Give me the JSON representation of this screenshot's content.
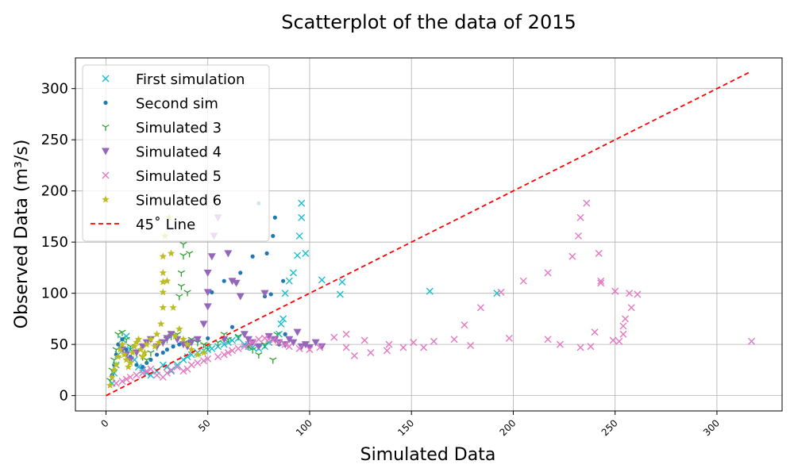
{
  "chart_data": {
    "type": "scatter",
    "title": "Scatterplot of the data of 2015",
    "xlabel": "Simulated Data",
    "ylabel": "Observed Data (m³/s)",
    "xlim": [
      -15,
      332
    ],
    "ylim": [
      -15,
      330
    ],
    "xticks": [
      0,
      50,
      100,
      150,
      200,
      250,
      300
    ],
    "xtick_labels": [
      "0",
      "50",
      "100",
      "150",
      "200",
      "250",
      "300"
    ],
    "yticks": [
      0,
      50,
      100,
      150,
      200,
      250,
      300
    ],
    "ytick_labels": [
      "0",
      "50",
      "100",
      "150",
      "200",
      "250",
      "300"
    ],
    "xtick_rotation": 45,
    "grid": true,
    "legend_position": "top-left",
    "series": [
      {
        "name": "First simulation",
        "marker": "x",
        "color": "#17becf",
        "points": [
          [
            3,
            12
          ],
          [
            4,
            22
          ],
          [
            5,
            30
          ],
          [
            6,
            40
          ],
          [
            7,
            48
          ],
          [
            8,
            55
          ],
          [
            10,
            58
          ],
          [
            12,
            45
          ],
          [
            14,
            35
          ],
          [
            16,
            28
          ],
          [
            18,
            25
          ],
          [
            20,
            22
          ],
          [
            22,
            20
          ],
          [
            25,
            24
          ],
          [
            28,
            30
          ],
          [
            30,
            28
          ],
          [
            32,
            24
          ],
          [
            35,
            30
          ],
          [
            38,
            35
          ],
          [
            40,
            38
          ],
          [
            42,
            40
          ],
          [
            45,
            42
          ],
          [
            48,
            44
          ],
          [
            50,
            45
          ],
          [
            52,
            46
          ],
          [
            55,
            48
          ],
          [
            58,
            50
          ],
          [
            60,
            52
          ],
          [
            62,
            54
          ],
          [
            65,
            56
          ],
          [
            68,
            50
          ],
          [
            70,
            48
          ],
          [
            72,
            47
          ],
          [
            75,
            46
          ],
          [
            78,
            48
          ],
          [
            80,
            52
          ],
          [
            82,
            55
          ],
          [
            85,
            60
          ],
          [
            86,
            70
          ],
          [
            87,
            75
          ],
          [
            88,
            100
          ],
          [
            90,
            112
          ],
          [
            92,
            120
          ],
          [
            94,
            137
          ],
          [
            95,
            156
          ],
          [
            96,
            174
          ],
          [
            96,
            188
          ],
          [
            98,
            139
          ],
          [
            106,
            113
          ],
          [
            115,
            99
          ],
          [
            116,
            111
          ],
          [
            159,
            102
          ],
          [
            192,
            100
          ]
        ]
      },
      {
        "name": "Second sim",
        "marker": "dot",
        "color": "#1f77b4",
        "points": [
          [
            3,
            20
          ],
          [
            4,
            30
          ],
          [
            5,
            40
          ],
          [
            6,
            50
          ],
          [
            8,
            55
          ],
          [
            10,
            45
          ],
          [
            12,
            38
          ],
          [
            15,
            30
          ],
          [
            18,
            28
          ],
          [
            20,
            32
          ],
          [
            22,
            35
          ],
          [
            25,
            40
          ],
          [
            28,
            42
          ],
          [
            30,
            45
          ],
          [
            33,
            48
          ],
          [
            36,
            50
          ],
          [
            40,
            52
          ],
          [
            45,
            54
          ],
          [
            50,
            56
          ],
          [
            52,
            101
          ],
          [
            58,
            112
          ],
          [
            62,
            67
          ],
          [
            66,
            120
          ],
          [
            70,
            50
          ],
          [
            72,
            136
          ],
          [
            75,
            188
          ],
          [
            78,
            97
          ],
          [
            79,
            139
          ],
          [
            81,
            99
          ],
          [
            82,
            156
          ],
          [
            83,
            174
          ],
          [
            85,
            50
          ],
          [
            87,
            112
          ],
          [
            88,
            60
          ]
        ]
      },
      {
        "name": "Simulated 3",
        "marker": "tri_down",
        "color": "#2ca02c",
        "points": [
          [
            2,
            15
          ],
          [
            3,
            25
          ],
          [
            4,
            35
          ],
          [
            5,
            45
          ],
          [
            6,
            60
          ],
          [
            8,
            62
          ],
          [
            10,
            55
          ],
          [
            12,
            48
          ],
          [
            15,
            42
          ],
          [
            18,
            38
          ],
          [
            20,
            35
          ],
          [
            22,
            42
          ],
          [
            25,
            48
          ],
          [
            28,
            52
          ],
          [
            30,
            55
          ],
          [
            32,
            58
          ],
          [
            35,
            60
          ],
          [
            36,
            97
          ],
          [
            37,
            107
          ],
          [
            37,
            120
          ],
          [
            38,
            137
          ],
          [
            38,
            148
          ],
          [
            40,
            101
          ],
          [
            41,
            139
          ],
          [
            42,
            55
          ],
          [
            45,
            52
          ],
          [
            48,
            50
          ],
          [
            50,
            48
          ],
          [
            55,
            52
          ],
          [
            58,
            60
          ],
          [
            60,
            55
          ],
          [
            65,
            58
          ],
          [
            70,
            48
          ],
          [
            72,
            45
          ],
          [
            75,
            40
          ],
          [
            78,
            50
          ],
          [
            82,
            35
          ],
          [
            84,
            60
          ]
        ]
      },
      {
        "name": "Simulated 4",
        "marker": "triangle_down",
        "color": "#9467bd",
        "points": [
          [
            8,
            45
          ],
          [
            10,
            40
          ],
          [
            12,
            35
          ],
          [
            15,
            42
          ],
          [
            18,
            48
          ],
          [
            20,
            52
          ],
          [
            22,
            55
          ],
          [
            25,
            48
          ],
          [
            28,
            52
          ],
          [
            30,
            56
          ],
          [
            32,
            60
          ],
          [
            35,
            55
          ],
          [
            38,
            50
          ],
          [
            40,
            48
          ],
          [
            42,
            52
          ],
          [
            45,
            55
          ],
          [
            48,
            70
          ],
          [
            50,
            87
          ],
          [
            50,
            101
          ],
          [
            50,
            120
          ],
          [
            52,
            136
          ],
          [
            53,
            156
          ],
          [
            55,
            174
          ],
          [
            58,
            55
          ],
          [
            60,
            139
          ],
          [
            62,
            112
          ],
          [
            64,
            110
          ],
          [
            66,
            97
          ],
          [
            68,
            60
          ],
          [
            70,
            55
          ],
          [
            72,
            52
          ],
          [
            75,
            48
          ],
          [
            78,
            100
          ],
          [
            80,
            58
          ],
          [
            83,
            55
          ],
          [
            85,
            52
          ],
          [
            88,
            50
          ],
          [
            90,
            55
          ],
          [
            92,
            52
          ],
          [
            94,
            62
          ],
          [
            96,
            48
          ],
          [
            98,
            50
          ],
          [
            100,
            47
          ],
          [
            103,
            52
          ],
          [
            106,
            48
          ]
        ]
      },
      {
        "name": "Simulated 5",
        "marker": "x",
        "color": "#e377c2",
        "points": [
          [
            5,
            12
          ],
          [
            8,
            14
          ],
          [
            10,
            16
          ],
          [
            12,
            18
          ],
          [
            15,
            20
          ],
          [
            18,
            22
          ],
          [
            20,
            24
          ],
          [
            22,
            26
          ],
          [
            25,
            20
          ],
          [
            28,
            18
          ],
          [
            30,
            22
          ],
          [
            32,
            25
          ],
          [
            35,
            28
          ],
          [
            38,
            24
          ],
          [
            40,
            26
          ],
          [
            42,
            30
          ],
          [
            45,
            32
          ],
          [
            48,
            34
          ],
          [
            50,
            36
          ],
          [
            55,
            38
          ],
          [
            58,
            40
          ],
          [
            60,
            42
          ],
          [
            62,
            44
          ],
          [
            65,
            46
          ],
          [
            68,
            48
          ],
          [
            70,
            50
          ],
          [
            72,
            52
          ],
          [
            75,
            55
          ],
          [
            78,
            56
          ],
          [
            80,
            55
          ],
          [
            82,
            54
          ],
          [
            85,
            52
          ],
          [
            88,
            50
          ],
          [
            90,
            48
          ],
          [
            95,
            46
          ],
          [
            100,
            45
          ],
          [
            105,
            47
          ],
          [
            112,
            57
          ],
          [
            118,
            60
          ],
          [
            118,
            47
          ],
          [
            122,
            39
          ],
          [
            127,
            54
          ],
          [
            130,
            42
          ],
          [
            138,
            44
          ],
          [
            139,
            50
          ],
          [
            146,
            47
          ],
          [
            151,
            52
          ],
          [
            156,
            47
          ],
          [
            161,
            53
          ],
          [
            171,
            55
          ],
          [
            176,
            69
          ],
          [
            179,
            49
          ],
          [
            184,
            86
          ],
          [
            194,
            101
          ],
          [
            198,
            56
          ],
          [
            205,
            112
          ],
          [
            217,
            120
          ],
          [
            217,
            55
          ],
          [
            223,
            50
          ],
          [
            229,
            136
          ],
          [
            232,
            156
          ],
          [
            233,
            47
          ],
          [
            233,
            174
          ],
          [
            236,
            188
          ],
          [
            238,
            48
          ],
          [
            240,
            62
          ],
          [
            242,
            139
          ],
          [
            243,
            112
          ],
          [
            243,
            110
          ],
          [
            249,
            54
          ],
          [
            250,
            102
          ],
          [
            252,
            53
          ],
          [
            254,
            68
          ],
          [
            254,
            60
          ],
          [
            255,
            75
          ],
          [
            257,
            100
          ],
          [
            258,
            86
          ],
          [
            261,
            99
          ],
          [
            317,
            53
          ]
        ]
      },
      {
        "name": "Simulated 6",
        "marker": "star",
        "color": "#bcbd22",
        "points": [
          [
            2,
            10
          ],
          [
            3,
            18
          ],
          [
            4,
            25
          ],
          [
            5,
            30
          ],
          [
            6,
            38
          ],
          [
            7,
            45
          ],
          [
            8,
            50
          ],
          [
            9,
            40
          ],
          [
            10,
            35
          ],
          [
            11,
            28
          ],
          [
            12,
            32
          ],
          [
            13,
            42
          ],
          [
            14,
            48
          ],
          [
            15,
            52
          ],
          [
            16,
            55
          ],
          [
            17,
            45
          ],
          [
            18,
            38
          ],
          [
            19,
            42
          ],
          [
            20,
            50
          ],
          [
            22,
            55
          ],
          [
            24,
            48
          ],
          [
            25,
            60
          ],
          [
            26,
            52
          ],
          [
            27,
            70
          ],
          [
            28,
            86
          ],
          [
            28,
            101
          ],
          [
            28,
            111
          ],
          [
            28,
            120
          ],
          [
            28,
            136
          ],
          [
            29,
            156
          ],
          [
            30,
            112
          ],
          [
            31,
            174
          ],
          [
            32,
            139
          ],
          [
            33,
            86
          ],
          [
            34,
            58
          ],
          [
            36,
            65
          ],
          [
            38,
            55
          ],
          [
            40,
            50
          ],
          [
            42,
            45
          ],
          [
            45,
            40
          ],
          [
            48,
            42
          ]
        ]
      },
      {
        "name": "45˚ Line",
        "marker": "dashed-line",
        "color": "#ff0000",
        "points": [
          [
            0,
            0
          ],
          [
            316,
            316
          ]
        ]
      }
    ]
  }
}
